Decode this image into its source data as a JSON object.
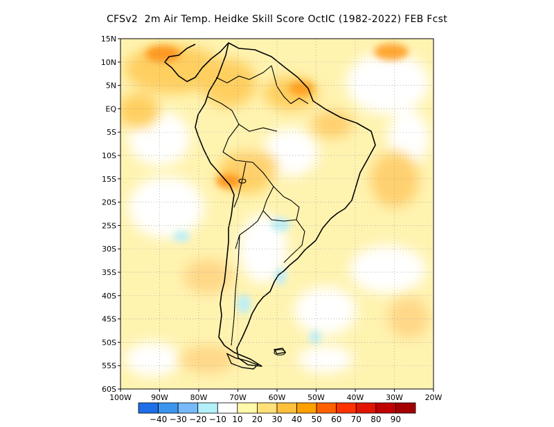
{
  "title": "CFSv2  2m Air Temp. Heidke Skill Score OctIC (1982-2022) FEB Fcst",
  "map": {
    "lat_labels": [
      "15N",
      "10N",
      "5N",
      "EQ",
      "5S",
      "10S",
      "15S",
      "20S",
      "25S",
      "30S",
      "35S",
      "40S",
      "45S",
      "50S",
      "55S",
      "60S"
    ],
    "lon_labels": [
      "100W",
      "90W",
      "80W",
      "70W",
      "60W",
      "50W",
      "40W",
      "30W",
      "20W"
    ]
  },
  "colorbar": {
    "labels": [
      "-40",
      "-30",
      "-20",
      "-10",
      "10",
      "20",
      "30",
      "40",
      "50",
      "60",
      "70",
      "80",
      "90"
    ],
    "colors": [
      "#1e6ee6",
      "#3c96f0",
      "#78b9fa",
      "#b4f0fa",
      "#ffffff",
      "#fffaaa",
      "#ffe178",
      "#ffc03c",
      "#ffa000",
      "#ff6000",
      "#ff3200",
      "#e11400",
      "#c00000",
      "#a50000"
    ]
  }
}
